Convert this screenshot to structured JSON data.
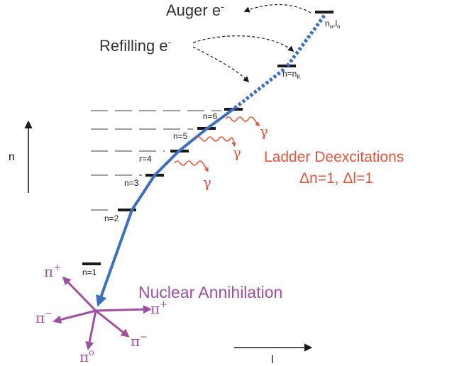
{
  "labels": {
    "auger": "Auger e",
    "auger_sup": "-",
    "refilling": "Refilling e",
    "refilling_sup": "-",
    "n0l0_n": "n",
    "n0l0_nsub": "o",
    "n0l0_sep": ",l",
    "n0l0_lsub": "o",
    "nk_main": "n=n",
    "nk_sub": "K",
    "n6": "n=6",
    "n5": "n=5",
    "n4": "r=4",
    "n3": "n=3",
    "n2": "n=2",
    "n1": "n=1",
    "gamma": "γ",
    "ladder_line1": "Ladder Deexcitations",
    "ladder_line2": "Δn=1, Δl=1",
    "nuclear": "Nuclear Annihilation",
    "pi": "π",
    "pi_plus": "+",
    "pi_minus": "−",
    "pi_zero": "o",
    "n_axis": "n",
    "l_axis": "l"
  },
  "colors": {
    "cascade": "#3b6fc4",
    "ladder_text": "#e8553a",
    "gamma": "#e8553a",
    "nuclear": "#a04ea0",
    "black": "#1a1a1a",
    "gray_dash": "#666666"
  }
}
